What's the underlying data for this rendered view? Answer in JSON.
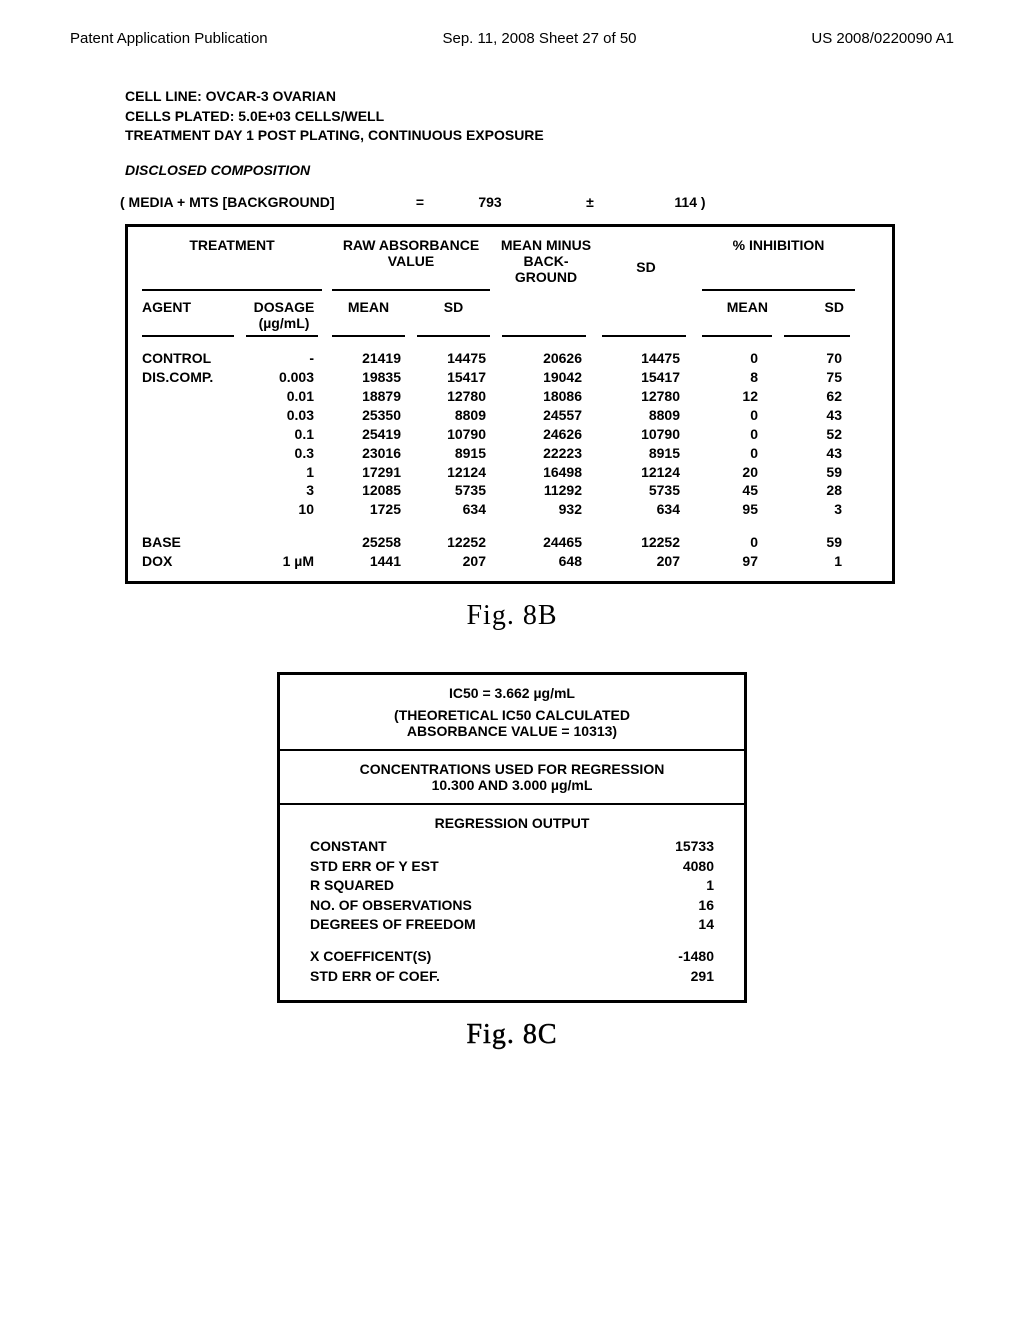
{
  "header": {
    "left": "Patent Application Publication",
    "center": "Sep. 11, 2008  Sheet 27 of 50",
    "right": "US 2008/0220090 A1"
  },
  "meta": {
    "line1": "CELL LINE:  OVCAR-3 OVARIAN",
    "line2": "CELLS PLATED:  5.0E+03  CELLS/WELL",
    "line3": "TREATMENT DAY 1 POST PLATING, CONTINUOUS EXPOSURE"
  },
  "disclosed": "DISCLOSED COMPOSITION",
  "background": {
    "label": "( MEDIA + MTS [BACKGROUND]",
    "eq": "=",
    "val": "793",
    "pm": "±",
    "sd": "114 )"
  },
  "table1": {
    "head": {
      "treatment": "TREATMENT",
      "raw": "RAW ABSORBANCE VALUE",
      "mmb": "MEAN MINUS BACK-GROUND",
      "sd": "SD",
      "inh": "% INHIBITION",
      "agent": "AGENT",
      "dosage": "DOSAGE (µg/mL)",
      "mean": "MEAN",
      "sd_s": "SD"
    },
    "rows": [
      {
        "agent": "CONTROL",
        "dosage": "-",
        "mean1": "21419",
        "sd1": "14475",
        "mmb": "20626",
        "sd2": "14475",
        "imean": "0",
        "isd": "70"
      },
      {
        "agent": "DIS.COMP.",
        "dosage": "0.003",
        "mean1": "19835",
        "sd1": "15417",
        "mmb": "19042",
        "sd2": "15417",
        "imean": "8",
        "isd": "75"
      },
      {
        "agent": "",
        "dosage": "0.01",
        "mean1": "18879",
        "sd1": "12780",
        "mmb": "18086",
        "sd2": "12780",
        "imean": "12",
        "isd": "62"
      },
      {
        "agent": "",
        "dosage": "0.03",
        "mean1": "25350",
        "sd1": "8809",
        "mmb": "24557",
        "sd2": "8809",
        "imean": "0",
        "isd": "43"
      },
      {
        "agent": "",
        "dosage": "0.1",
        "mean1": "25419",
        "sd1": "10790",
        "mmb": "24626",
        "sd2": "10790",
        "imean": "0",
        "isd": "52"
      },
      {
        "agent": "",
        "dosage": "0.3",
        "mean1": "23016",
        "sd1": "8915",
        "mmb": "22223",
        "sd2": "8915",
        "imean": "0",
        "isd": "43"
      },
      {
        "agent": "",
        "dosage": "1",
        "mean1": "17291",
        "sd1": "12124",
        "mmb": "16498",
        "sd2": "12124",
        "imean": "20",
        "isd": "59"
      },
      {
        "agent": "",
        "dosage": "3",
        "mean1": "12085",
        "sd1": "5735",
        "mmb": "11292",
        "sd2": "5735",
        "imean": "45",
        "isd": "28"
      },
      {
        "agent": "",
        "dosage": "10",
        "mean1": "1725",
        "sd1": "634",
        "mmb": "932",
        "sd2": "634",
        "imean": "95",
        "isd": "3"
      }
    ],
    "rows2": [
      {
        "agent": "BASE",
        "dosage": "",
        "mean1": "25258",
        "sd1": "12252",
        "mmb": "24465",
        "sd2": "12252",
        "imean": "0",
        "isd": "59"
      },
      {
        "agent": "DOX",
        "dosage": "1  µM",
        "mean1": "1441",
        "sd1": "207",
        "mmb": "648",
        "sd2": "207",
        "imean": "97",
        "isd": "1"
      }
    ]
  },
  "fig8b": "Fig. 8B",
  "table2": {
    "ic50": "IC50  =  3.662 µg/mL",
    "theo1": "(THEORETICAL IC50 CALCULATED",
    "theo2": "ABSORBANCE VALUE = 10313)",
    "conc1": "CONCENTRATIONS USED FOR REGRESSION",
    "conc2": "10.300   AND   3.000   µg/mL",
    "regout": "REGRESSION OUTPUT",
    "rows": [
      {
        "lbl": "CONSTANT",
        "val": "15733"
      },
      {
        "lbl": "STD ERR OF Y EST",
        "val": "4080"
      },
      {
        "lbl": "R SQUARED",
        "val": "1"
      },
      {
        "lbl": "NO. OF OBSERVATIONS",
        "val": "16"
      },
      {
        "lbl": "DEGREES OF FREEDOM",
        "val": "14"
      }
    ],
    "rows2": [
      {
        "lbl": "X COEFFICENT(S)",
        "val": "-1480"
      },
      {
        "lbl": "STD ERR OF COEF.",
        "val": "291"
      }
    ]
  },
  "fig8c": "Fig. 8C"
}
